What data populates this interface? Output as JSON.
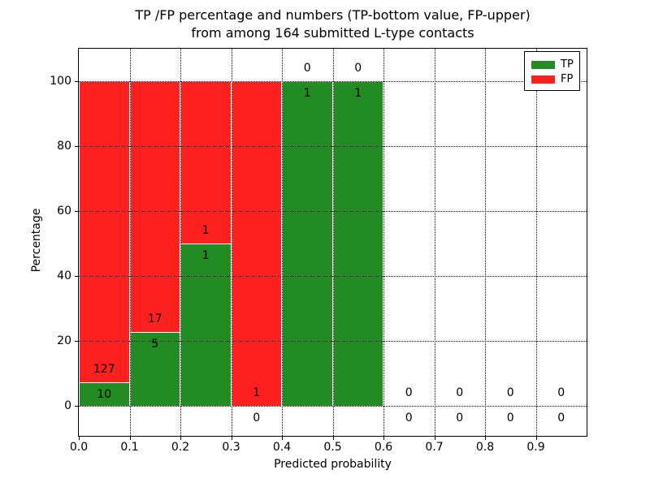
{
  "chart_data": {
    "type": "bar",
    "stacked": true,
    "title_line1": "TP /FP percentage and numbers (TP-bottom value, FP-upper)",
    "title_line2": "from among 164 submitted L-type contacts",
    "xlabel": "Predicted probability",
    "ylabel": "Percentage",
    "xlim": [
      0.0,
      1.0
    ],
    "ylim": [
      -9.25,
      110
    ],
    "grid": {
      "style": "dotted",
      "color": "#000000"
    },
    "xticks": [
      {
        "v": 0.0,
        "label": "0.0"
      },
      {
        "v": 0.1,
        "label": "0.1"
      },
      {
        "v": 0.2,
        "label": "0.2"
      },
      {
        "v": 0.3,
        "label": "0.3"
      },
      {
        "v": 0.4,
        "label": "0.4"
      },
      {
        "v": 0.5,
        "label": "0.5"
      },
      {
        "v": 0.6,
        "label": "0.6"
      },
      {
        "v": 0.7,
        "label": "0.7"
      },
      {
        "v": 0.8,
        "label": "0.8"
      },
      {
        "v": 0.9,
        "label": "0.9"
      }
    ],
    "yticks": [
      {
        "v": 0,
        "label": "0"
      },
      {
        "v": 20,
        "label": "20"
      },
      {
        "v": 40,
        "label": "40"
      },
      {
        "v": 60,
        "label": "60"
      },
      {
        "v": 80,
        "label": "80"
      },
      {
        "v": 100,
        "label": "100"
      }
    ],
    "bins": [
      {
        "range": [
          0.0,
          0.1
        ],
        "tp": 10,
        "fp": 127
      },
      {
        "range": [
          0.1,
          0.2
        ],
        "tp": 5,
        "fp": 17
      },
      {
        "range": [
          0.2,
          0.3
        ],
        "tp": 1,
        "fp": 1
      },
      {
        "range": [
          0.3,
          0.4
        ],
        "tp": 0,
        "fp": 1
      },
      {
        "range": [
          0.4,
          0.5
        ],
        "tp": 1,
        "fp": 0
      },
      {
        "range": [
          0.5,
          0.6
        ],
        "tp": 1,
        "fp": 0
      },
      {
        "range": [
          0.6,
          0.7
        ],
        "tp": 0,
        "fp": 0
      },
      {
        "range": [
          0.7,
          0.8
        ],
        "tp": 0,
        "fp": 0
      },
      {
        "range": [
          0.8,
          0.9
        ],
        "tp": 0,
        "fp": 0
      },
      {
        "range": [
          0.9,
          1.0
        ],
        "tp": 0,
        "fp": 0
      }
    ],
    "legend": [
      {
        "label": "TP",
        "color": "#228b22"
      },
      {
        "label": "FP",
        "color": "#ff2020"
      }
    ]
  }
}
